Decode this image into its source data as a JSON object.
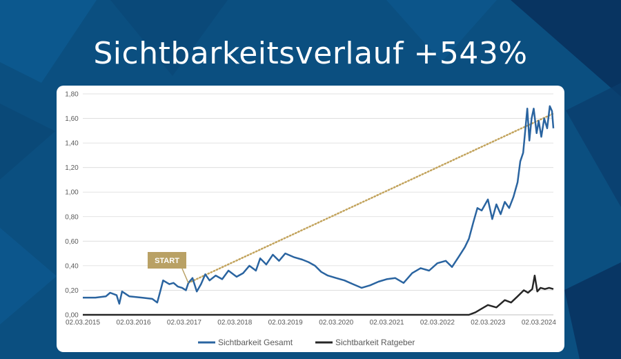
{
  "colors": {
    "background": "#0b4f80",
    "card": "#ffffff",
    "series_gesamt": "#2a64a0",
    "series_ratgeber": "#262626",
    "trend": "#c2a35c",
    "badge": "#b9a165",
    "grid": "#d9d9d9"
  },
  "header": {
    "title": "Sichtbarkeitsverlauf +543%"
  },
  "chart_data": {
    "type": "line",
    "title": "",
    "xlabel": "",
    "ylabel": "",
    "x_tick_labels": [
      "02.03.2015",
      "02.03.2016",
      "02.03.2017",
      "02.03.2018",
      "02.03.2019",
      "02.03.2020",
      "02.03.2021",
      "02.03.2022",
      "02.03.2023",
      "02.03.2024"
    ],
    "y_tick_labels": [
      "0,00",
      "0,20",
      "0,40",
      "0,60",
      "0,80",
      "1,00",
      "1,20",
      "1,40",
      "1,60",
      "1,80"
    ],
    "ylim": [
      0,
      1.8
    ],
    "xlim": [
      "2015-03-02",
      "2024-06-15"
    ],
    "grid": "horizontal",
    "legend_position": "bottom",
    "series": [
      {
        "name": "Sichtbarkeit Gesamt",
        "color": "#2a64a0",
        "points": [
          [
            "2015-03-02",
            0.14
          ],
          [
            "2015-06-01",
            0.14
          ],
          [
            "2015-08-15",
            0.15
          ],
          [
            "2015-09-15",
            0.18
          ],
          [
            "2015-11-01",
            0.16
          ],
          [
            "2015-11-20",
            0.09
          ],
          [
            "2015-12-10",
            0.19
          ],
          [
            "2016-02-01",
            0.15
          ],
          [
            "2016-05-01",
            0.14
          ],
          [
            "2016-07-15",
            0.13
          ],
          [
            "2016-08-20",
            0.1
          ],
          [
            "2016-09-10",
            0.19
          ],
          [
            "2016-10-01",
            0.28
          ],
          [
            "2016-11-15",
            0.25
          ],
          [
            "2016-12-15",
            0.26
          ],
          [
            "2017-01-15",
            0.23
          ],
          [
            "2017-02-15",
            0.22
          ],
          [
            "2017-03-15",
            0.2
          ],
          [
            "2017-04-01",
            0.26
          ],
          [
            "2017-05-01",
            0.3
          ],
          [
            "2017-06-01",
            0.19
          ],
          [
            "2017-07-01",
            0.25
          ],
          [
            "2017-08-01",
            0.33
          ],
          [
            "2017-09-01",
            0.28
          ],
          [
            "2017-10-15",
            0.32
          ],
          [
            "2017-12-01",
            0.29
          ],
          [
            "2018-01-15",
            0.36
          ],
          [
            "2018-03-15",
            0.31
          ],
          [
            "2018-05-01",
            0.34
          ],
          [
            "2018-06-15",
            0.4
          ],
          [
            "2018-08-01",
            0.36
          ],
          [
            "2018-09-01",
            0.46
          ],
          [
            "2018-10-15",
            0.41
          ],
          [
            "2018-12-01",
            0.49
          ],
          [
            "2019-01-15",
            0.44
          ],
          [
            "2019-03-01",
            0.5
          ],
          [
            "2019-05-01",
            0.47
          ],
          [
            "2019-07-01",
            0.45
          ],
          [
            "2019-08-15",
            0.43
          ],
          [
            "2019-10-01",
            0.4
          ],
          [
            "2019-11-15",
            0.35
          ],
          [
            "2020-01-01",
            0.32
          ],
          [
            "2020-03-01",
            0.3
          ],
          [
            "2020-05-01",
            0.28
          ],
          [
            "2020-07-01",
            0.25
          ],
          [
            "2020-09-01",
            0.22
          ],
          [
            "2020-11-01",
            0.24
          ],
          [
            "2021-01-01",
            0.27
          ],
          [
            "2021-03-01",
            0.29
          ],
          [
            "2021-05-01",
            0.3
          ],
          [
            "2021-07-01",
            0.26
          ],
          [
            "2021-09-01",
            0.34
          ],
          [
            "2021-11-01",
            0.38
          ],
          [
            "2022-01-01",
            0.36
          ],
          [
            "2022-03-01",
            0.42
          ],
          [
            "2022-05-01",
            0.44
          ],
          [
            "2022-06-15",
            0.39
          ],
          [
            "2022-08-01",
            0.47
          ],
          [
            "2022-09-15",
            0.55
          ],
          [
            "2022-10-15",
            0.62
          ],
          [
            "2022-11-15",
            0.75
          ],
          [
            "2022-12-15",
            0.87
          ],
          [
            "2023-01-15",
            0.85
          ],
          [
            "2023-03-01",
            0.94
          ],
          [
            "2023-04-01",
            0.78
          ],
          [
            "2023-05-01",
            0.9
          ],
          [
            "2023-06-01",
            0.82
          ],
          [
            "2023-07-01",
            0.92
          ],
          [
            "2023-08-01",
            0.87
          ],
          [
            "2023-09-01",
            0.96
          ],
          [
            "2023-10-01",
            1.08
          ],
          [
            "2023-10-20",
            1.25
          ],
          [
            "2023-11-10",
            1.32
          ],
          [
            "2023-11-25",
            1.5
          ],
          [
            "2023-12-10",
            1.68
          ],
          [
            "2023-12-25",
            1.42
          ],
          [
            "2024-01-10",
            1.6
          ],
          [
            "2024-01-25",
            1.68
          ],
          [
            "2024-02-15",
            1.48
          ],
          [
            "2024-03-01",
            1.58
          ],
          [
            "2024-03-20",
            1.45
          ],
          [
            "2024-04-10",
            1.6
          ],
          [
            "2024-05-01",
            1.52
          ],
          [
            "2024-05-20",
            1.7
          ],
          [
            "2024-06-05",
            1.66
          ],
          [
            "2024-06-15",
            1.52
          ]
        ]
      },
      {
        "name": "Sichtbarkeit Ratgeber",
        "color": "#262626",
        "points": [
          [
            "2015-03-02",
            0.0
          ],
          [
            "2022-10-15",
            0.0
          ],
          [
            "2022-12-01",
            0.02
          ],
          [
            "2023-01-15",
            0.05
          ],
          [
            "2023-03-01",
            0.08
          ],
          [
            "2023-05-01",
            0.06
          ],
          [
            "2023-07-01",
            0.12
          ],
          [
            "2023-08-15",
            0.1
          ],
          [
            "2023-10-01",
            0.15
          ],
          [
            "2023-11-15",
            0.2
          ],
          [
            "2023-12-15",
            0.18
          ],
          [
            "2024-01-15",
            0.21
          ],
          [
            "2024-02-01",
            0.32
          ],
          [
            "2024-02-20",
            0.19
          ],
          [
            "2024-03-15",
            0.22
          ],
          [
            "2024-04-15",
            0.21
          ],
          [
            "2024-05-15",
            0.22
          ],
          [
            "2024-06-15",
            0.21
          ]
        ]
      }
    ],
    "trendline": {
      "from": [
        "2017-04-01",
        0.26
      ],
      "to": [
        "2024-06-15",
        1.64
      ],
      "style": "dotted"
    },
    "annotation": {
      "label": "START",
      "date": "2017-04-01",
      "value": 0.26
    }
  }
}
